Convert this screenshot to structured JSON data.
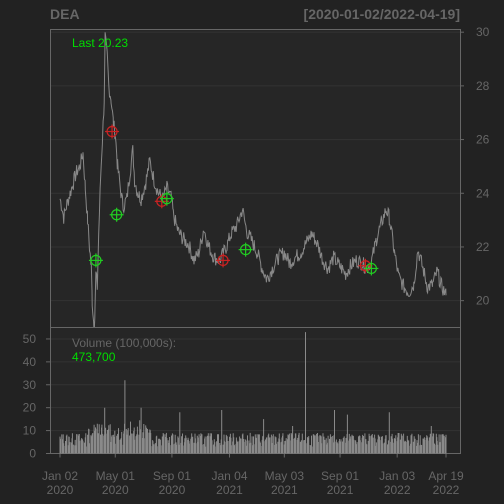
{
  "chart_data": {
    "type": "line",
    "title": "DEA",
    "date_range": "[2020-01-02/2022-04-19]",
    "last_label": "Last 20.23",
    "last_value": 20.23,
    "price_axis": {
      "ylim": [
        19,
        30.1
      ],
      "ticks": [
        "30",
        "28",
        "26",
        "24",
        "22",
        "20"
      ],
      "tick_values": [
        30,
        28,
        26,
        24,
        22,
        20
      ]
    },
    "volume_axis": {
      "label": "Volume (100,000s):",
      "last_volume": "473,700",
      "ylim": [
        0,
        55
      ],
      "ticks": [
        "50",
        "40",
        "30",
        "20",
        "10",
        "0"
      ],
      "tick_values": [
        50,
        40,
        30,
        20,
        10,
        0
      ]
    },
    "x_ticks": [
      {
        "line1": "Jan 02",
        "line2": "2020",
        "date": "2020-01-02"
      },
      {
        "line1": "May 01",
        "line2": "2020",
        "date": "2020-05-01"
      },
      {
        "line1": "Sep 01",
        "line2": "2020",
        "date": "2020-09-01"
      },
      {
        "line1": "Jan 04",
        "line2": "2021",
        "date": "2021-01-04"
      },
      {
        "line1": "May 03",
        "line2": "2021",
        "date": "2021-05-03"
      },
      {
        "line1": "Sep 01",
        "line2": "2021",
        "date": "2021-09-01"
      },
      {
        "line1": "Jan 03",
        "line2": "2022",
        "date": "2022-01-03"
      },
      {
        "line1": "Apr 19",
        "line2": "2022",
        "date": "2022-04-19"
      }
    ],
    "price_series": [
      [
        "2020-01-02",
        23.8
      ],
      [
        "2020-01-06",
        23.5
      ],
      [
        "2020-01-10",
        23.1
      ],
      [
        "2020-01-17",
        23.6
      ],
      [
        "2020-01-24",
        24.0
      ],
      [
        "2020-01-31",
        24.4
      ],
      [
        "2020-02-07",
        24.8
      ],
      [
        "2020-02-14",
        25.0
      ],
      [
        "2020-02-21",
        25.5
      ],
      [
        "2020-02-26",
        24.2
      ],
      [
        "2020-03-02",
        23.0
      ],
      [
        "2020-03-06",
        22.0
      ],
      [
        "2020-03-10",
        21.2
      ],
      [
        "2020-03-12",
        20.0
      ],
      [
        "2020-03-16",
        19.0
      ],
      [
        "2020-03-18",
        19.8
      ],
      [
        "2020-03-20",
        21.0
      ],
      [
        "2020-03-23",
        20.5
      ],
      [
        "2020-03-26",
        22.5
      ],
      [
        "2020-03-30",
        24.5
      ],
      [
        "2020-04-03",
        26.0
      ],
      [
        "2020-04-07",
        27.5
      ],
      [
        "2020-04-09",
        29.8
      ],
      [
        "2020-04-14",
        29.0
      ],
      [
        "2020-04-17",
        28.0
      ],
      [
        "2020-04-22",
        27.5
      ],
      [
        "2020-04-27",
        26.6
      ],
      [
        "2020-05-01",
        26.2
      ],
      [
        "2020-05-06",
        25.0
      ],
      [
        "2020-05-12",
        24.2
      ],
      [
        "2020-05-18",
        23.5
      ],
      [
        "2020-05-26",
        23.8
      ],
      [
        "2020-06-02",
        24.8
      ],
      [
        "2020-06-08",
        25.6
      ],
      [
        "2020-06-12",
        24.5
      ],
      [
        "2020-06-19",
        24.0
      ],
      [
        "2020-06-26",
        23.8
      ],
      [
        "2020-07-06",
        24.4
      ],
      [
        "2020-07-15",
        25.2
      ],
      [
        "2020-07-24",
        24.5
      ],
      [
        "2020-08-03",
        24.0
      ],
      [
        "2020-08-12",
        23.8
      ],
      [
        "2020-08-21",
        24.2
      ],
      [
        "2020-08-31",
        23.8
      ],
      [
        "2020-09-04",
        23.2
      ],
      [
        "2020-09-14",
        22.6
      ],
      [
        "2020-09-25",
        22.3
      ],
      [
        "2020-10-07",
        22.1
      ],
      [
        "2020-10-19",
        21.5
      ],
      [
        "2020-10-30",
        21.8
      ],
      [
        "2020-11-09",
        22.7
      ],
      [
        "2020-11-20",
        22.0
      ],
      [
        "2020-12-02",
        21.6
      ],
      [
        "2020-12-14",
        21.5
      ],
      [
        "2020-12-28",
        22.0
      ],
      [
        "2021-01-08",
        22.5
      ],
      [
        "2021-01-20",
        22.8
      ],
      [
        "2021-02-01",
        23.4
      ],
      [
        "2021-02-10",
        22.6
      ],
      [
        "2021-02-22",
        22.2
      ],
      [
        "2021-03-05",
        21.8
      ],
      [
        "2021-03-16",
        21.2
      ],
      [
        "2021-03-26",
        20.8
      ],
      [
        "2021-04-07",
        21.2
      ],
      [
        "2021-04-20",
        21.6
      ],
      [
        "2021-05-03",
        21.8
      ],
      [
        "2021-05-14",
        21.4
      ],
      [
        "2021-05-26",
        21.6
      ],
      [
        "2021-06-08",
        21.8
      ],
      [
        "2021-06-21",
        22.2
      ],
      [
        "2021-07-02",
        22.5
      ],
      [
        "2021-07-14",
        22.1
      ],
      [
        "2021-07-26",
        21.5
      ],
      [
        "2021-08-06",
        21.2
      ],
      [
        "2021-08-18",
        21.6
      ],
      [
        "2021-08-31",
        21.3
      ],
      [
        "2021-09-13",
        21.0
      ],
      [
        "2021-09-24",
        21.3
      ],
      [
        "2021-10-06",
        21.5
      ],
      [
        "2021-10-19",
        21.4
      ],
      [
        "2021-10-29",
        21.2
      ],
      [
        "2021-11-09",
        21.5
      ],
      [
        "2021-11-19",
        22.3
      ],
      [
        "2021-11-30",
        22.9
      ],
      [
        "2021-12-10",
        23.4
      ],
      [
        "2021-12-17",
        23.1
      ],
      [
        "2021-12-28",
        21.8
      ],
      [
        "2022-01-06",
        20.9
      ],
      [
        "2022-01-18",
        20.5
      ],
      [
        "2022-01-28",
        20.3
      ],
      [
        "2022-02-08",
        20.6
      ],
      [
        "2022-02-17",
        21.9
      ],
      [
        "2022-02-28",
        21.2
      ],
      [
        "2022-03-10",
        20.5
      ],
      [
        "2022-03-21",
        20.6
      ],
      [
        "2022-03-31",
        21.1
      ],
      [
        "2022-04-08",
        20.6
      ],
      [
        "2022-04-19",
        20.2
      ]
    ],
    "markers": [
      {
        "date": "2020-03-20",
        "value": 21.5,
        "color": "#22cc22"
      },
      {
        "date": "2020-05-04",
        "value": 23.2,
        "color": "#22cc22"
      },
      {
        "date": "2020-04-24",
        "value": 26.3,
        "color": "#cc2222"
      },
      {
        "date": "2020-08-10",
        "value": 23.7,
        "color": "#cc2222"
      },
      {
        "date": "2020-08-21",
        "value": 23.8,
        "color": "#22cc22"
      },
      {
        "date": "2020-12-21",
        "value": 21.5,
        "color": "#cc2222"
      },
      {
        "date": "2021-02-08",
        "value": 21.9,
        "color": "#22cc22"
      },
      {
        "date": "2021-10-26",
        "value": 21.3,
        "color": "#cc2222"
      },
      {
        "date": "2021-11-08",
        "value": 21.2,
        "color": "#22cc22"
      }
    ],
    "volume_spikes": [
      [
        "2020-03-23",
        13
      ],
      [
        "2020-04-08",
        20
      ],
      [
        "2020-05-22",
        32
      ],
      [
        "2020-06-26",
        20
      ],
      [
        "2020-09-18",
        18
      ],
      [
        "2020-12-18",
        19
      ],
      [
        "2021-03-19",
        15
      ],
      [
        "2021-05-21",
        12
      ],
      [
        "2021-06-18",
        53
      ],
      [
        "2021-08-20",
        19
      ],
      [
        "2021-09-17",
        17
      ],
      [
        "2021-12-17",
        18
      ],
      [
        "2022-03-18",
        12
      ]
    ],
    "colors": {
      "price": "#888888",
      "volume": "#8a8a8a",
      "background": "#222222",
      "frame": "#666666",
      "grid": "#333333"
    }
  }
}
